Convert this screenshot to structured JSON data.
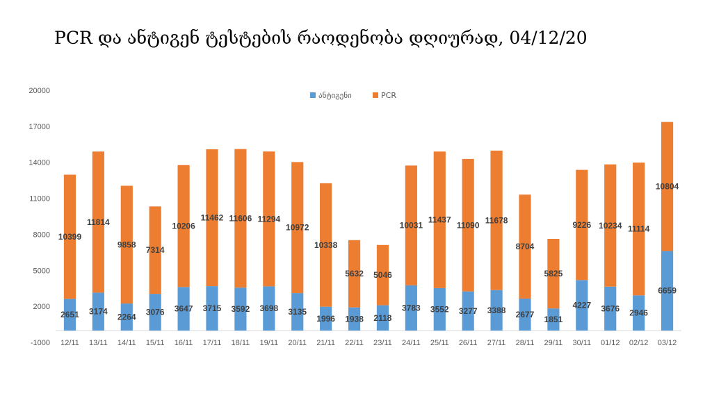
{
  "title": "PCR და ანტიგენ ტესტების რაოდენობა დღიურად, 04/12/20",
  "chart_data": {
    "type": "bar",
    "stacked": true,
    "title": "PCR და ანტიგენ ტესტების რაოდენობა დღიურად, 04/12/20",
    "categories": [
      "12/11",
      "13/11",
      "14/11",
      "15/11",
      "16/11",
      "17/11",
      "18/11",
      "19/11",
      "20/11",
      "21/11",
      "22/11",
      "23/11",
      "24/11",
      "25/11",
      "26/11",
      "27/11",
      "28/11",
      "29/11",
      "30/11",
      "01/12",
      "02/12",
      "03/12"
    ],
    "series": [
      {
        "name": "ანტიგენი",
        "color": "#5B9BD5",
        "values": [
          2651,
          3174,
          2264,
          3076,
          3647,
          3715,
          3592,
          3698,
          3135,
          1996,
          1938,
          2118,
          3783,
          3552,
          3277,
          3388,
          2677,
          1851,
          4227,
          3676,
          2946,
          6659
        ]
      },
      {
        "name": "PCR",
        "color": "#ED7D31",
        "values": [
          10399,
          11814,
          9858,
          7314,
          10206,
          11462,
          11606,
          11294,
          10972,
          10338,
          5632,
          5046,
          10031,
          11437,
          11090,
          11678,
          8704,
          5825,
          9226,
          10234,
          11114,
          10804
        ]
      }
    ],
    "yticks": [
      "-1000",
      "2000",
      "5000",
      "8000",
      "11000",
      "14000",
      "17000",
      "20000"
    ],
    "ylim": [
      -1000,
      20000
    ],
    "legend_position": "top-center",
    "grid": false
  }
}
